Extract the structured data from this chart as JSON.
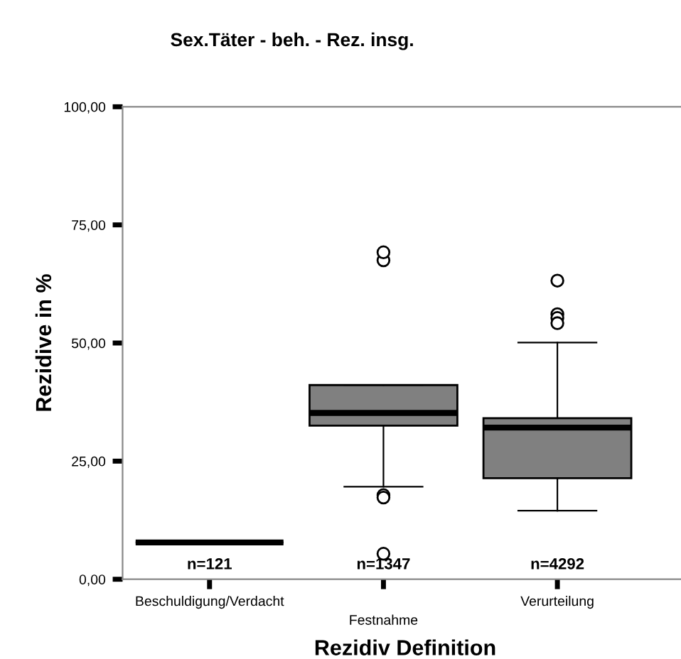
{
  "chart_data": {
    "type": "box",
    "title": "Sex.Täter - beh. - Rez. insg.",
    "xlabel": "Rezidiv Definition",
    "ylabel": "Rezidive in %",
    "categories": [
      "Beschuldigung/Verdacht",
      "Festnahme",
      "Verurteilung"
    ],
    "boxes": [
      {
        "low": 7.8,
        "q1": 7.8,
        "median": 7.8,
        "q3": 7.8,
        "high": 7.8
      },
      {
        "low": 19.6,
        "q1": 32.5,
        "median": 35.2,
        "q3": 41.1,
        "high": 41.1,
        "outliers": [
          17.8,
          17.3,
          67.5,
          69.2,
          5.4
        ]
      },
      {
        "low": 14.5,
        "q1": 21.4,
        "median": 32.1,
        "q3": 34.1,
        "high": 50.1,
        "outliers": [
          63.2,
          56.1,
          55.3,
          54.2
        ]
      }
    ],
    "colors": [
      "#000000",
      "#808080",
      "#808080"
    ],
    "ylim": [
      0,
      100
    ],
    "yticks": [
      {
        "value": 0,
        "label": "0,00"
      },
      {
        "value": 25,
        "label": "25,00"
      },
      {
        "value": 50,
        "label": "50,00"
      },
      {
        "value": 75,
        "label": "75,00"
      },
      {
        "value": 100,
        "label": "100,00"
      }
    ],
    "annotations": [
      "n=121",
      "n=1347",
      "n=4292"
    ],
    "grid": false,
    "legend": false
  }
}
